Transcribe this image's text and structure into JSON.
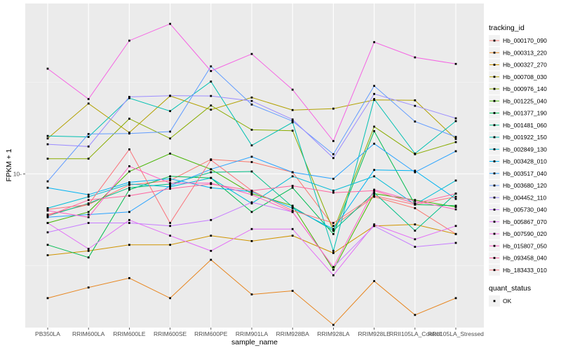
{
  "chart_data": {
    "type": "line",
    "xlabel": "sample_name",
    "ylabel": "FPKM + 1",
    "log_scale_y": true,
    "y_ticks": [
      10
    ],
    "ylim": [
      1.45,
      85
    ],
    "grid": true,
    "legend_position": "right",
    "legend_title": "tracking_id",
    "shape_legend": {
      "title": "quant_status",
      "entries": [
        "OK"
      ]
    },
    "categories": [
      "PB350LA",
      "RRIM600LA",
      "RRIM600LE",
      "RRIM600SE",
      "RRIM600PE",
      "RRIM901LA",
      "RRIM928BA",
      "RRIM928LA",
      "RRIM928LE",
      "RRII105LA_Control",
      "RRII105LA_Stressed"
    ],
    "series": [
      {
        "name": "Hb_000170_090",
        "color": "#F8766D",
        "values": [
          6.0,
          6.8,
          8.7,
          9.2,
          12.0,
          11.6,
          10.2,
          5.2,
          7.5,
          6.5,
          4.7
        ]
      },
      {
        "name": "Hb_000313_220",
        "color": "#E7851E",
        "values": [
          2.1,
          2.4,
          2.7,
          2.1,
          3.4,
          2.2,
          2.3,
          1.5,
          2.6,
          1.7,
          2.1
        ]
      },
      {
        "name": "Hb_000327_270",
        "color": "#D09400",
        "values": [
          3.6,
          3.8,
          4.1,
          4.1,
          4.6,
          4.3,
          4.6,
          3.7,
          5.2,
          5.3,
          4.7
        ]
      },
      {
        "name": "Hb_000708_030",
        "color": "#B2A100",
        "values": [
          15.6,
          24.2,
          16.8,
          26.6,
          22.4,
          26.1,
          22.3,
          22.7,
          25.3,
          25.2,
          15.5
        ]
      },
      {
        "name": "Hb_000976_140",
        "color": "#89AC00",
        "values": [
          12.1,
          12.1,
          20.0,
          15.6,
          23.6,
          17.4,
          17.2,
          4.9,
          18.1,
          12.8,
          14.9
        ]
      },
      {
        "name": "Hb_001225_040",
        "color": "#45B500",
        "values": [
          5.4,
          6.2,
          10.3,
          12.9,
          10.6,
          7.8,
          6.7,
          3.0,
          7.8,
          7.2,
          6.6
        ]
      },
      {
        "name": "Hb_001377_190",
        "color": "#00BC51",
        "values": [
          4.1,
          3.5,
          8.2,
          9.7,
          9.5,
          6.2,
          8.4,
          4.7,
          17.1,
          6.8,
          6.7
        ]
      },
      {
        "name": "Hb_001481_060",
        "color": "#00C087",
        "values": [
          5.9,
          6.9,
          8.4,
          8.8,
          10.2,
          10.3,
          6.6,
          4.9,
          7.9,
          4.9,
          7.8
        ]
      },
      {
        "name": "Hb_001922_150",
        "color": "#00C0B2",
        "values": [
          16.1,
          15.9,
          25.9,
          22.0,
          31.9,
          14.3,
          19.1,
          3.8,
          25.6,
          12.9,
          19.4
        ]
      },
      {
        "name": "Hb_002849_130",
        "color": "#00BCD6",
        "values": [
          6.5,
          7.5,
          8.8,
          8.5,
          9.5,
          6.9,
          9.7,
          8.1,
          9.7,
          6.8,
          9.2
        ]
      },
      {
        "name": "Hb_003428_010",
        "color": "#00B3F2",
        "values": [
          8.4,
          7.7,
          9.0,
          9.4,
          8.4,
          8.0,
          6.5,
          5.0,
          10.5,
          10.4,
          7.3
        ]
      },
      {
        "name": "Hb_003517_040",
        "color": "#29A3FF",
        "values": [
          5.8,
          6.0,
          6.2,
          8.6,
          10.6,
          12.4,
          10.2,
          9.4,
          14.6,
          10.2,
          13.3
        ]
      },
      {
        "name": "Hb_003680_120",
        "color": "#619CFF",
        "values": [
          9.1,
          16.5,
          16.6,
          17.0,
          38.6,
          23.9,
          19.4,
          12.8,
          30.2,
          19.3,
          15.9
        ]
      },
      {
        "name": "Hb_004452_110",
        "color": "#9C8DFF",
        "values": [
          14.5,
          14.1,
          26.3,
          26.7,
          26.6,
          25.0,
          19.8,
          12.2,
          27.3,
          23.5,
          20.1
        ]
      },
      {
        "name": "Hb_005730_040",
        "color": "#C77CFF",
        "values": [
          4.8,
          5.4,
          5.4,
          5.2,
          5.6,
          7.0,
          6.2,
          3.1,
          5.2,
          4.0,
          4.2
        ]
      },
      {
        "name": "Hb_005867_070",
        "color": "#E36EF6",
        "values": [
          5.4,
          3.9,
          5.6,
          4.6,
          3.8,
          5.0,
          5.0,
          2.8,
          5.3,
          4.4,
          5.2
        ]
      },
      {
        "name": "Hb_007590_020",
        "color": "#F564E3",
        "values": [
          37.5,
          25.6,
          53.3,
          65.8,
          36.4,
          45.1,
          28.8,
          15.1,
          52.3,
          43.2,
          39.8
        ]
      },
      {
        "name": "Hb_015807_050",
        "color": "#FF61C4",
        "values": [
          6.3,
          5.8,
          11.0,
          8.9,
          8.9,
          7.7,
          6.2,
          3.1,
          8.2,
          7.1,
          6.4
        ]
      },
      {
        "name": "Hb_093458_040",
        "color": "#FF65A0",
        "values": [
          5.9,
          7.2,
          7.6,
          8.3,
          8.8,
          8.1,
          8.6,
          7.9,
          8.1,
          6.9,
          7.8
        ]
      },
      {
        "name": "Hb_183433_010",
        "color": "#FB727A",
        "values": [
          6.4,
          6.8,
          13.6,
          5.4,
          11.9,
          8.1,
          6.3,
          5.4,
          7.6,
          6.8,
          7.5
        ]
      }
    ]
  }
}
